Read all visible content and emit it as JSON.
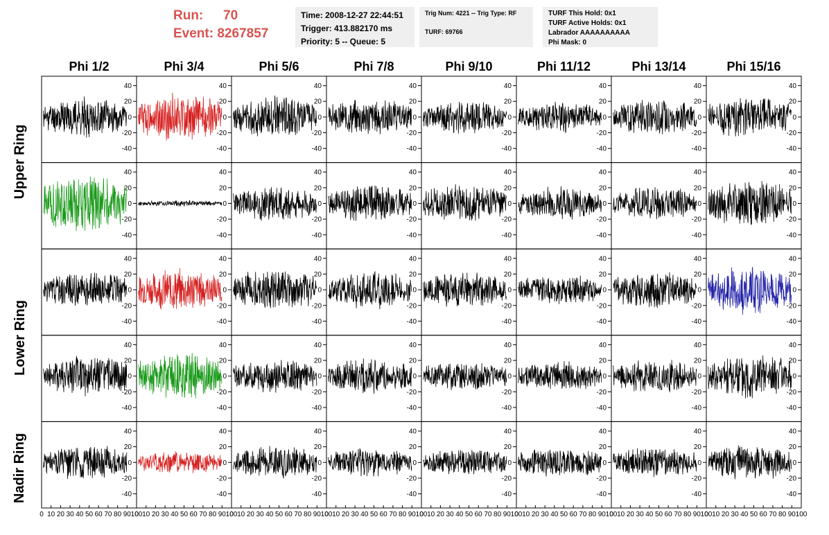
{
  "header": {
    "run_label": "Run:",
    "run_value": "70",
    "event_label": "Event:",
    "event_value": "8267857",
    "time_line": "Time: 2008-12-27 22:44:51",
    "trigger_line": "Trigger: 413.882170 ms",
    "priority_line": "Priority: 5 -- Queue: 5",
    "trig_line": "Trig Num: 4221 -- Trig Type: RF",
    "turf_line": "TURF: 69766",
    "turf_this_hold": "TURF This Hold: 0x1",
    "turf_active_holds": "TURF Active Holds: 0x1",
    "labrador": "Labrador AAAAAAAAAA",
    "phi_mask": "Phi Mask: 0"
  },
  "columns": [
    "Phi 1/2",
    "Phi 3/4",
    "Phi 5/6",
    "Phi 7/8",
    "Phi 9/10",
    "Phi 11/12",
    "Phi 13/14",
    "Phi 15/16"
  ],
  "rows": [
    "Upper Ring",
    "Lower Ring",
    "Nadir Ring"
  ],
  "colors": {
    "header_text": "#d9534f",
    "info_bg": "#efefef",
    "black": "#000000",
    "red": "#d62020",
    "green": "#1a9a1a",
    "blue": "#2424a8"
  },
  "chart_data": {
    "type": "line",
    "description_axes": "8 columns x 5 panel rows of waveform traces",
    "x_range": [
      0,
      100
    ],
    "y_range": [
      -58,
      52
    ],
    "x_ticks": [
      0,
      10,
      20,
      30,
      40,
      50,
      60,
      70,
      80,
      90,
      100
    ],
    "x_tick_labels": [
      "0",
      "10",
      "20",
      "30",
      "40",
      "50",
      "60",
      "70",
      "80",
      "90",
      "100"
    ],
    "y_ticks": [
      -40,
      -20,
      0,
      20,
      40
    ],
    "y_tick_labels": [
      "-40",
      "-20",
      "0",
      "20",
      "40"
    ],
    "panel_rows": 5,
    "panel_cols": 8,
    "samples": 260,
    "panels": [
      {
        "row": 0,
        "col": 0,
        "amp": 13,
        "color": "black",
        "seed": 11
      },
      {
        "row": 0,
        "col": 1,
        "amp": 16,
        "color": "red",
        "seed": 12
      },
      {
        "row": 0,
        "col": 2,
        "amp": 14,
        "color": "black",
        "seed": 13
      },
      {
        "row": 0,
        "col": 3,
        "amp": 12,
        "color": "black",
        "seed": 14
      },
      {
        "row": 0,
        "col": 4,
        "amp": 11,
        "color": "black",
        "seed": 15
      },
      {
        "row": 0,
        "col": 5,
        "amp": 10,
        "color": "black",
        "seed": 16
      },
      {
        "row": 0,
        "col": 6,
        "amp": 12,
        "color": "black",
        "seed": 17
      },
      {
        "row": 0,
        "col": 7,
        "amp": 14,
        "color": "black",
        "seed": 18
      },
      {
        "row": 1,
        "col": 0,
        "amp": 20,
        "color": "green",
        "seed": 21
      },
      {
        "row": 1,
        "col": 1,
        "amp": 2,
        "color": "black",
        "seed": 22
      },
      {
        "row": 1,
        "col": 2,
        "amp": 12,
        "color": "black",
        "seed": 23
      },
      {
        "row": 1,
        "col": 3,
        "amp": 12,
        "color": "black",
        "seed": 24
      },
      {
        "row": 1,
        "col": 4,
        "amp": 13,
        "color": "black",
        "seed": 25
      },
      {
        "row": 1,
        "col": 5,
        "amp": 11,
        "color": "black",
        "seed": 26
      },
      {
        "row": 1,
        "col": 6,
        "amp": 11,
        "color": "black",
        "seed": 27
      },
      {
        "row": 1,
        "col": 7,
        "amp": 16,
        "color": "black",
        "seed": 28
      },
      {
        "row": 2,
        "col": 0,
        "amp": 12,
        "color": "black",
        "seed": 31
      },
      {
        "row": 2,
        "col": 1,
        "amp": 14,
        "color": "red",
        "seed": 32
      },
      {
        "row": 2,
        "col": 2,
        "amp": 14,
        "color": "black",
        "seed": 33
      },
      {
        "row": 2,
        "col": 3,
        "amp": 13,
        "color": "black",
        "seed": 34
      },
      {
        "row": 2,
        "col": 4,
        "amp": 12,
        "color": "black",
        "seed": 35
      },
      {
        "row": 2,
        "col": 5,
        "amp": 10,
        "color": "black",
        "seed": 36
      },
      {
        "row": 2,
        "col": 6,
        "amp": 13,
        "color": "black",
        "seed": 37
      },
      {
        "row": 2,
        "col": 7,
        "amp": 16,
        "color": "blue",
        "seed": 38
      },
      {
        "row": 3,
        "col": 0,
        "amp": 14,
        "color": "black",
        "seed": 41
      },
      {
        "row": 3,
        "col": 1,
        "amp": 16,
        "color": "green",
        "seed": 42
      },
      {
        "row": 3,
        "col": 2,
        "amp": 11,
        "color": "black",
        "seed": 43
      },
      {
        "row": 3,
        "col": 3,
        "amp": 12,
        "color": "black",
        "seed": 44
      },
      {
        "row": 3,
        "col": 4,
        "amp": 10,
        "color": "black",
        "seed": 45
      },
      {
        "row": 3,
        "col": 5,
        "amp": 10,
        "color": "black",
        "seed": 46
      },
      {
        "row": 3,
        "col": 6,
        "amp": 11,
        "color": "black",
        "seed": 47
      },
      {
        "row": 3,
        "col": 7,
        "amp": 16,
        "color": "black",
        "seed": 48
      },
      {
        "row": 4,
        "col": 0,
        "amp": 12,
        "color": "black",
        "seed": 51
      },
      {
        "row": 4,
        "col": 1,
        "amp": 8,
        "color": "red",
        "seed": 52
      },
      {
        "row": 4,
        "col": 2,
        "amp": 11,
        "color": "black",
        "seed": 53
      },
      {
        "row": 4,
        "col": 3,
        "amp": 10,
        "color": "black",
        "seed": 54
      },
      {
        "row": 4,
        "col": 4,
        "amp": 9,
        "color": "black",
        "seed": 55
      },
      {
        "row": 4,
        "col": 5,
        "amp": 10,
        "color": "black",
        "seed": 56
      },
      {
        "row": 4,
        "col": 6,
        "amp": 10,
        "color": "black",
        "seed": 57
      },
      {
        "row": 4,
        "col": 7,
        "amp": 12,
        "color": "black",
        "seed": 58
      }
    ]
  }
}
